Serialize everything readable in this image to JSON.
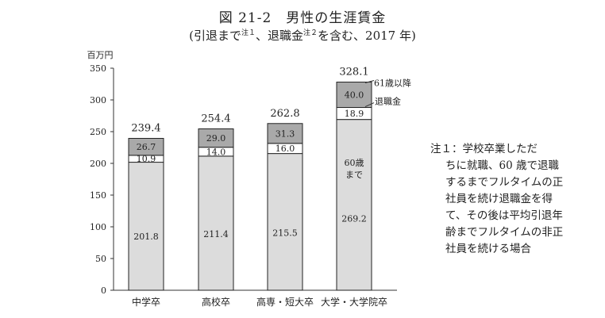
{
  "header": {
    "title": "図 21-2　男性の生涯賃金",
    "subtitle_a": "(引退まで",
    "subtitle_sup1": "注１",
    "subtitle_b": "、退職金",
    "subtitle_sup2": "注２",
    "subtitle_c": "を含む、2017 年)"
  },
  "note": {
    "head": "注１：学校卒業しただ",
    "body": "ちに就職、60 歳で退職するまでフルタイムの正社員を続け退職金を得て、その後は平均引退年齢までフルタイムの非正社員を続ける場合"
  },
  "chart_data": {
    "type": "bar",
    "stacked": true,
    "unit_label": "百万円",
    "ylim": [
      0,
      350
    ],
    "yticks": [
      0,
      50,
      100,
      150,
      200,
      250,
      300,
      350
    ],
    "categories": [
      "中学卒",
      "高校卒",
      "高専・短大卒",
      "大学・大学院卒"
    ],
    "series": [
      {
        "name": "60歳まで",
        "values": [
          201.8,
          211.4,
          215.5,
          269.2
        ],
        "color": "#dcdcdc"
      },
      {
        "name": "退職金",
        "values": [
          10.9,
          14.0,
          16.0,
          18.9
        ],
        "color": "#ffffff"
      },
      {
        "name": "61歳以降",
        "values": [
          26.7,
          29.0,
          31.3,
          40.0
        ],
        "color": "#a9a9a9"
      }
    ],
    "totals": [
      239.4,
      254.4,
      262.8,
      328.1
    ],
    "segment_labels": [
      [
        "201.8",
        "10.9",
        "26.7"
      ],
      [
        "211.4",
        "14.0",
        "29.0"
      ],
      [
        "215.5",
        "16.0",
        "31.3"
      ],
      [
        "269.2",
        "18.9",
        "40.0"
      ]
    ],
    "total_labels": [
      "239.4",
      "254.4",
      "262.8",
      "328.1"
    ],
    "annotations": {
      "label_61": "61歳以降",
      "label_retire": "退職金",
      "label_60_line1": "60歳",
      "label_60_line2": "まで"
    }
  }
}
